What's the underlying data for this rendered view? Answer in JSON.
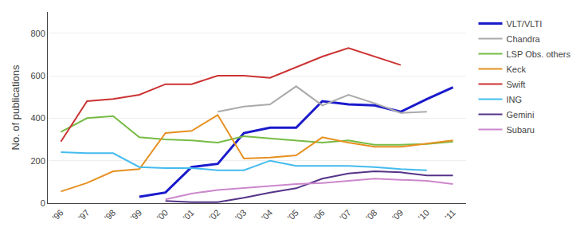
{
  "chart_data": {
    "type": "line",
    "categories": [
      "'96",
      "'97",
      "'98",
      "'99",
      "'00",
      "'01",
      "'02",
      "'03",
      "'04",
      "'05",
      "'06",
      "'07",
      "'08",
      "'09",
      "'10",
      "'11"
    ],
    "series": [
      {
        "name": "VLT/VLTI",
        "color": "#1a1acc",
        "values": [
          null,
          null,
          null,
          30,
          50,
          170,
          185,
          330,
          355,
          355,
          480,
          465,
          460,
          430,
          490,
          545
        ]
      },
      {
        "name": "Chandra",
        "color": "#aaaaaa",
        "values": [
          null,
          null,
          null,
          null,
          null,
          null,
          430,
          455,
          465,
          550,
          460,
          510,
          470,
          425,
          430,
          null
        ]
      },
      {
        "name": "LSP Obs. others",
        "color": "#77bb44",
        "values": [
          335,
          400,
          410,
          310,
          300,
          295,
          285,
          315,
          305,
          295,
          285,
          295,
          275,
          275,
          278,
          290
        ]
      },
      {
        "name": "Keck",
        "color": "#e69020",
        "values": [
          55,
          95,
          150,
          160,
          330,
          340,
          415,
          210,
          215,
          225,
          310,
          285,
          265,
          265,
          280,
          295
        ]
      },
      {
        "name": "Swift",
        "color": "#cc3333",
        "values": [
          290,
          480,
          490,
          510,
          560,
          560,
          600,
          600,
          590,
          640,
          690,
          730,
          690,
          650,
          null,
          null
        ]
      },
      {
        "name": "ING",
        "color": "#44bbee",
        "values": [
          240,
          235,
          235,
          170,
          165,
          165,
          155,
          155,
          200,
          175,
          175,
          175,
          170,
          160,
          155,
          null
        ]
      },
      {
        "name": "Gemini",
        "color": "#553388",
        "values": [
          null,
          null,
          null,
          null,
          10,
          5,
          5,
          25,
          50,
          70,
          115,
          140,
          150,
          145,
          130,
          130
        ]
      },
      {
        "name": "Subaru",
        "color": "#cc88cc",
        "values": [
          null,
          null,
          null,
          null,
          18,
          45,
          62,
          72,
          82,
          90,
          95,
          105,
          115,
          110,
          105,
          90
        ]
      }
    ],
    "ylabel": "No. of publications",
    "ylim": [
      0,
      900
    ],
    "yticks": [
      0,
      200,
      400,
      600,
      800
    ],
    "grid": true,
    "legend": "right"
  }
}
